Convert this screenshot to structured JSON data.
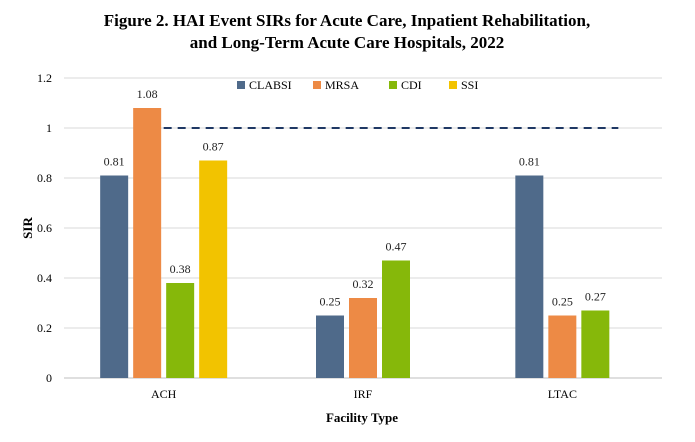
{
  "chart_data": {
    "type": "bar",
    "title_line1": "Figure 2. HAI Event SIRs for Acute Care, Inpatient Rehabilitation,",
    "title_line2": "and Long-Term Acute Care Hospitals, 2022",
    "xlabel": "Facility Type",
    "ylabel": "SIR",
    "ylim": [
      0,
      1.2
    ],
    "yticks": [
      "0",
      "0.2",
      "0.4",
      "0.6",
      "0.8",
      "1",
      "1.2"
    ],
    "ytick_values": [
      0,
      0.2,
      0.4,
      0.6,
      0.8,
      1.0,
      1.2
    ],
    "categories": [
      "ACH",
      "IRF",
      "LTAC"
    ],
    "series": [
      {
        "name": "CLABSI",
        "color": "#4f6a8a",
        "values": [
          0.81,
          0.25,
          0.81
        ],
        "labels": [
          "0.81",
          "0.25",
          "0.81"
        ]
      },
      {
        "name": "MRSA",
        "color": "#ed8a45",
        "values": [
          1.08,
          0.32,
          0.25
        ],
        "labels": [
          "1.08",
          "0.32",
          "0.25"
        ]
      },
      {
        "name": "CDI",
        "color": "#86b80a",
        "values": [
          0.38,
          0.47,
          0.27
        ],
        "labels": [
          "0.38",
          "0.47",
          "0.27"
        ]
      },
      {
        "name": "SSI",
        "color": "#f2c300",
        "values": [
          0.87,
          null,
          null
        ],
        "labels": [
          "0.87",
          null,
          null
        ]
      }
    ],
    "reference_line": {
      "value": 1.0,
      "color": "#1f3864",
      "from_category": 0,
      "to_category": 2
    },
    "legend_position": "top-center",
    "grid": true
  }
}
